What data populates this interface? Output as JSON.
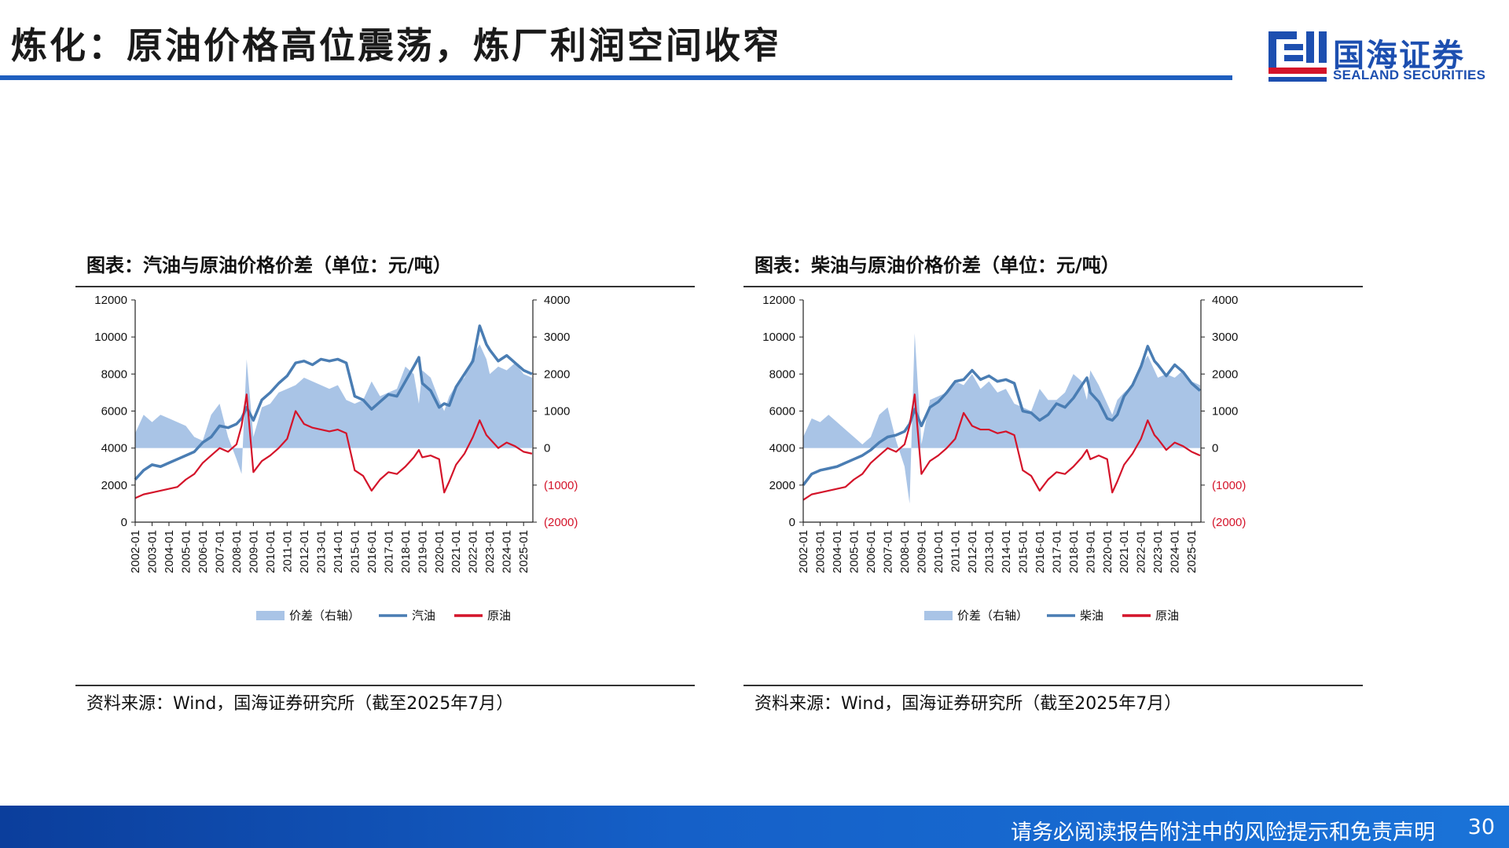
{
  "header": {
    "title": "炼化：原油价格高位震荡，炼厂利润空间收窄",
    "logo_cn": "国海证券",
    "logo_en": "SEALAND SECURITIES"
  },
  "colors": {
    "accent": "#1f5fbf",
    "spread_fill": "#a9c4e6",
    "product_line": "#4a7db3",
    "crude_line": "#d4142a"
  },
  "footer": {
    "disclaimer": "请务必阅读报告附注中的风险提示和免责声明",
    "page_number": "30"
  },
  "panels": [
    {
      "title": "图表：汽油与原油价格价差（单位：元/吨）",
      "source": "资料来源：Wind，国海证券研究所（截至2025年7月）"
    },
    {
      "title": "图表：柴油与原油价格价差（单位：元/吨）",
      "source": "资料来源：Wind，国海证券研究所（截至2025年7月）"
    }
  ],
  "chart_data": [
    {
      "type": "line",
      "x_ticks": [
        "2002-01",
        "2003-01",
        "2004-01",
        "2005-01",
        "2006-01",
        "2007-01",
        "2008-01",
        "2009-01",
        "2010-01",
        "2011-01",
        "2012-01",
        "2013-01",
        "2014-01",
        "2015-01",
        "2016-01",
        "2017-01",
        "2018-01",
        "2019-01",
        "2020-01",
        "2021-01",
        "2022-01",
        "2023-01",
        "2024-01",
        "2025-01"
      ],
      "y_left_ticks": [
        "12000",
        "10000",
        "8000",
        "6000",
        "4000",
        "2000",
        "0"
      ],
      "y_right_ticks": [
        "4000",
        "3000",
        "2000",
        "1000",
        "0",
        "(1000)",
        "(2000)"
      ],
      "ylim_left": [
        0,
        12000
      ],
      "ylim_right": [
        -2000,
        4000
      ],
      "x": [
        2002.0,
        2002.5,
        2003.0,
        2003.5,
        2004.0,
        2004.5,
        2005.0,
        2005.5,
        2006.0,
        2006.5,
        2007.0,
        2007.5,
        2008.0,
        2008.3,
        2008.6,
        2009.0,
        2009.5,
        2010.0,
        2010.5,
        2011.0,
        2011.5,
        2012.0,
        2012.5,
        2013.0,
        2013.5,
        2014.0,
        2014.5,
        2015.0,
        2015.5,
        2016.0,
        2016.5,
        2017.0,
        2017.5,
        2018.0,
        2018.5,
        2018.8,
        2019.0,
        2019.5,
        2020.0,
        2020.3,
        2020.6,
        2021.0,
        2021.5,
        2022.0,
        2022.4,
        2022.8,
        2023.0,
        2023.5,
        2024.0,
        2024.5,
        2025.0,
        2025.5
      ],
      "series": [
        {
          "name": "价差（右轴）",
          "axis": "right",
          "style": "area",
          "values": [
            400,
            900,
            700,
            900,
            800,
            700,
            600,
            300,
            200,
            900,
            1200,
            300,
            -300,
            -700,
            2400,
            300,
            1100,
            1200,
            1500,
            1600,
            1700,
            1900,
            1800,
            1700,
            1600,
            1700,
            1300,
            1200,
            1300,
            1800,
            1400,
            1500,
            1600,
            2200,
            2000,
            1200,
            2100,
            1900,
            1300,
            1000,
            1400,
            1700,
            1900,
            2500,
            2800,
            2400,
            2000,
            2200,
            2100,
            2300,
            2000,
            1900
          ]
        },
        {
          "name": "汽油",
          "axis": "left",
          "style": "line",
          "values": [
            2300,
            2800,
            3100,
            3000,
            3200,
            3400,
            3600,
            3800,
            4300,
            4600,
            5200,
            5100,
            5300,
            5600,
            6200,
            5500,
            6600,
            7000,
            7500,
            7900,
            8600,
            8700,
            8500,
            8800,
            8700,
            8800,
            8600,
            6800,
            6600,
            6100,
            6500,
            6900,
            6800,
            7600,
            8400,
            8900,
            7500,
            7100,
            6200,
            6400,
            6300,
            7300,
            8000,
            8700,
            10600,
            9600,
            9300,
            8700,
            9000,
            8600,
            8200,
            8000
          ]
        },
        {
          "name": "原油",
          "axis": "left",
          "style": "line",
          "values": [
            1300,
            1500,
            1600,
            1700,
            1800,
            1900,
            2300,
            2600,
            3200,
            3600,
            4000,
            3800,
            4200,
            5200,
            6900,
            2700,
            3300,
            3600,
            4000,
            4500,
            6000,
            5300,
            5100,
            5000,
            4900,
            5000,
            4800,
            2800,
            2500,
            1700,
            2300,
            2700,
            2600,
            3000,
            3500,
            3900,
            3500,
            3600,
            3400,
            1600,
            2200,
            3100,
            3700,
            4600,
            5500,
            4700,
            4500,
            4000,
            4300,
            4100,
            3800,
            3700
          ]
        }
      ]
    },
    {
      "type": "line",
      "x_ticks": [
        "2002-01",
        "2003-01",
        "2004-01",
        "2005-01",
        "2006-01",
        "2007-01",
        "2008-01",
        "2009-01",
        "2010-01",
        "2011-01",
        "2012-01",
        "2013-01",
        "2014-01",
        "2015-01",
        "2016-01",
        "2017-01",
        "2018-01",
        "2019-01",
        "2020-01",
        "2021-01",
        "2022-01",
        "2023-01",
        "2024-01",
        "2025-01"
      ],
      "y_left_ticks": [
        "12000",
        "10000",
        "8000",
        "6000",
        "4000",
        "2000",
        "0"
      ],
      "y_right_ticks": [
        "4000",
        "3000",
        "2000",
        "1000",
        "0",
        "(1000)",
        "(2000)"
      ],
      "ylim_left": [
        0,
        12000
      ],
      "ylim_right": [
        -2000,
        4000
      ],
      "x": [
        2002.0,
        2002.5,
        2003.0,
        2003.5,
        2004.0,
        2004.5,
        2005.0,
        2005.5,
        2006.0,
        2006.5,
        2007.0,
        2007.5,
        2008.0,
        2008.3,
        2008.6,
        2009.0,
        2009.5,
        2010.0,
        2010.5,
        2011.0,
        2011.5,
        2012.0,
        2012.5,
        2013.0,
        2013.5,
        2014.0,
        2014.5,
        2015.0,
        2015.5,
        2016.0,
        2016.5,
        2017.0,
        2017.5,
        2018.0,
        2018.5,
        2018.8,
        2019.0,
        2019.5,
        2020.0,
        2020.3,
        2020.6,
        2021.0,
        2021.5,
        2022.0,
        2022.4,
        2022.8,
        2023.0,
        2023.5,
        2024.0,
        2024.5,
        2025.0,
        2025.5
      ],
      "series": [
        {
          "name": "价差（右轴）",
          "axis": "right",
          "style": "area",
          "values": [
            300,
            800,
            700,
            900,
            700,
            500,
            300,
            100,
            300,
            900,
            1100,
            200,
            -500,
            -1500,
            3100,
            100,
            1300,
            1400,
            1500,
            1800,
            1700,
            2000,
            1600,
            1800,
            1500,
            1600,
            1200,
            1100,
            1000,
            1600,
            1300,
            1300,
            1500,
            2000,
            1800,
            1300,
            2100,
            1700,
            1200,
            900,
            1300,
            1500,
            1700,
            2200,
            2500,
            2100,
            1900,
            2000,
            1900,
            2100,
            1800,
            1700
          ]
        },
        {
          "name": "柴油",
          "axis": "left",
          "style": "line",
          "values": [
            2000,
            2600,
            2800,
            2900,
            3000,
            3200,
            3400,
            3600,
            3900,
            4300,
            4600,
            4700,
            4900,
            5300,
            6100,
            5200,
            6200,
            6500,
            7000,
            7600,
            7700,
            8200,
            7700,
            7900,
            7600,
            7700,
            7500,
            6000,
            5900,
            5500,
            5800,
            6400,
            6200,
            6700,
            7400,
            7800,
            7000,
            6500,
            5600,
            5500,
            5800,
            6800,
            7400,
            8400,
            9500,
            8700,
            8500,
            7900,
            8500,
            8100,
            7500,
            7100
          ]
        },
        {
          "name": "原油",
          "axis": "left",
          "style": "line",
          "values": [
            1200,
            1500,
            1600,
            1700,
            1800,
            1900,
            2300,
            2600,
            3200,
            3600,
            4000,
            3800,
            4200,
            5200,
            6900,
            2600,
            3300,
            3600,
            4000,
            4500,
            5900,
            5200,
            5000,
            5000,
            4800,
            4900,
            4700,
            2800,
            2500,
            1700,
            2300,
            2700,
            2600,
            3000,
            3500,
            3900,
            3400,
            3600,
            3400,
            1600,
            2200,
            3100,
            3700,
            4500,
            5500,
            4700,
            4500,
            3900,
            4300,
            4100,
            3800,
            3600
          ]
        }
      ]
    }
  ]
}
